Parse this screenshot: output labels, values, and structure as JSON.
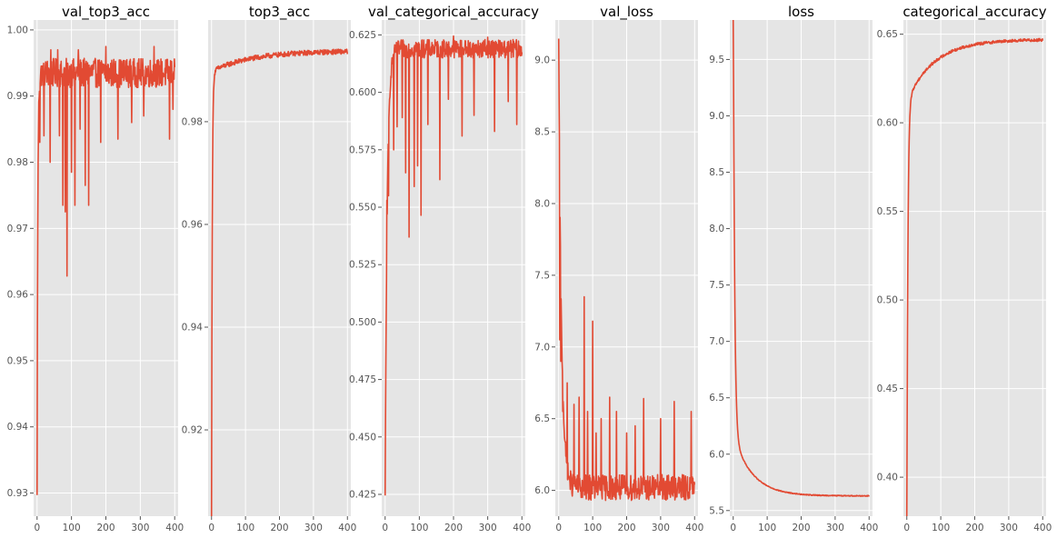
{
  "colors": {
    "panel_bg": "#e5e5e5",
    "grid": "#ffffff",
    "line": "#e24a33",
    "tick_text": "#555555"
  },
  "chart_data": [
    {
      "type": "line",
      "title": "val_top3_acc",
      "xlim": [
        -10,
        410
      ],
      "ylim": [
        0.9265,
        1.0015
      ],
      "xticks": [
        0,
        100,
        200,
        300,
        400
      ],
      "yticks": [
        0.93,
        0.94,
        0.95,
        0.96,
        0.97,
        0.98,
        0.99,
        1.0
      ],
      "ytick_labels": [
        "0.93",
        "0.94",
        "0.95",
        "0.96",
        "0.97",
        "0.98",
        "0.99",
        "1.00"
      ],
      "series": [
        {
          "start": 0.9297,
          "plateau": 0.9935,
          "tau": 2,
          "spread": 0.0022,
          "dips": [
            [
              8,
              0.983
            ],
            [
              20,
              0.984
            ],
            [
              38,
              0.98
            ],
            [
              65,
              0.984
            ],
            [
              75,
              0.9735
            ],
            [
              82,
              0.9725
            ],
            [
              87,
              0.9628
            ],
            [
              100,
              0.9785
            ],
            [
              110,
              0.9735
            ],
            [
              125,
              0.985
            ],
            [
              140,
              0.9765
            ],
            [
              150,
              0.9735
            ],
            [
              185,
              0.983
            ],
            [
              200,
              0.9808
            ],
            [
              235,
              0.9835
            ],
            [
              275,
              0.986
            ],
            [
              310,
              0.987
            ],
            [
              340,
              0.986
            ],
            [
              385,
              0.9835
            ],
            [
              395,
              0.988
            ]
          ],
          "peaks": [
            [
              40,
              0.997
            ],
            [
              60,
              0.997
            ],
            [
              120,
              0.997
            ],
            [
              200,
              0.9975
            ],
            [
              340,
              0.9975
            ]
          ]
        }
      ],
      "grid": true
    },
    {
      "type": "line",
      "title": "top3_acc",
      "xlim": [
        -10,
        410
      ],
      "ylim": [
        0.9032,
        0.9998
      ],
      "xticks": [
        0,
        100,
        200,
        300,
        400
      ],
      "yticks": [
        0.92,
        0.94,
        0.96,
        0.98
      ],
      "ytick_labels": [
        "0.92",
        "0.94",
        "0.96",
        "0.98"
      ],
      "series": [
        {
          "start": 0.9065,
          "plateau": 0.9938,
          "tau": 2,
          "spread": 0.0005,
          "slow_drop": 0.004,
          "slow_tau": 120,
          "dips": [],
          "peaks": []
        }
      ],
      "grid": true
    },
    {
      "type": "line",
      "title": "val_categorical_accuracy",
      "xlim": [
        -10,
        410
      ],
      "ylim": [
        0.4155,
        0.6315
      ],
      "xticks": [
        0,
        100,
        200,
        300,
        400
      ],
      "yticks": [
        0.425,
        0.45,
        0.475,
        0.5,
        0.525,
        0.55,
        0.575,
        0.6,
        0.625
      ],
      "ytick_labels": [
        "0.425",
        "0.450",
        "0.475",
        "0.500",
        "0.525",
        "0.550",
        "0.575",
        "0.600",
        "0.625"
      ],
      "series": [
        {
          "start": 0.4245,
          "plateau": 0.619,
          "tau": 6,
          "spread": 0.004,
          "dips": [
            [
              5,
              0.553
            ],
            [
              10,
              0.555
            ],
            [
              25,
              0.575
            ],
            [
              35,
              0.585
            ],
            [
              50,
              0.589
            ],
            [
              60,
              0.565
            ],
            [
              70,
              0.537
            ],
            [
              85,
              0.559
            ],
            [
              95,
              0.568
            ],
            [
              105,
              0.5465
            ],
            [
              125,
              0.586
            ],
            [
              160,
              0.562
            ],
            [
              185,
              0.597
            ],
            [
              225,
              0.581
            ],
            [
              260,
              0.59
            ],
            [
              320,
              0.583
            ],
            [
              360,
              0.596
            ],
            [
              385,
              0.586
            ]
          ],
          "peaks": [
            [
              200,
              0.6245
            ],
            [
              300,
              0.624
            ]
          ]
        }
      ],
      "grid": true
    },
    {
      "type": "line",
      "title": "val_loss",
      "xlim": [
        -10,
        410
      ],
      "ylim": [
        5.82,
        9.28
      ],
      "xticks": [
        0,
        100,
        200,
        300,
        400
      ],
      "yticks": [
        6.0,
        6.5,
        7.0,
        7.5,
        8.0,
        8.5,
        9.0
      ],
      "ytick_labels": [
        "6.0",
        "6.5",
        "7.0",
        "7.5",
        "8.0",
        "8.5",
        "9.0"
      ],
      "series": [
        {
          "start": 9.15,
          "plateau": 6.02,
          "tau": 8,
          "spread": 0.09,
          "dips": [],
          "peaks": [
            [
              3,
              7.05
            ],
            [
              6,
              6.9
            ],
            [
              12,
              6.55
            ],
            [
              25,
              6.75
            ],
            [
              45,
              6.6
            ],
            [
              60,
              6.65
            ],
            [
              75,
              7.35
            ],
            [
              85,
              6.55
            ],
            [
              100,
              7.18
            ],
            [
              110,
              6.4
            ],
            [
              125,
              6.5
            ],
            [
              150,
              6.65
            ],
            [
              170,
              6.55
            ],
            [
              200,
              6.4
            ],
            [
              225,
              6.45
            ],
            [
              250,
              6.64
            ],
            [
              300,
              6.5
            ],
            [
              340,
              6.62
            ],
            [
              390,
              6.55
            ]
          ]
        }
      ],
      "grid": true
    },
    {
      "type": "line",
      "title": "loss",
      "xlim": [
        -10,
        410
      ],
      "ylim": [
        5.45,
        9.85
      ],
      "xticks": [
        0,
        100,
        200,
        300,
        400
      ],
      "yticks": [
        5.5,
        6.0,
        6.5,
        7.0,
        7.5,
        8.0,
        8.5,
        9.0,
        9.5
      ],
      "ytick_labels": [
        "5.5",
        "6.0",
        "6.5",
        "7.0",
        "7.5",
        "8.0",
        "8.5",
        "9.0",
        "9.5"
      ],
      "series": [
        {
          "start": 9.7,
          "plateau": 5.63,
          "tau": 4,
          "spread": 0.004,
          "slow_drop": -0.55,
          "slow_tau": 55,
          "dips": [],
          "peaks": []
        }
      ],
      "grid": true
    },
    {
      "type": "line",
      "title": "categorical_accuracy",
      "xlim": [
        -10,
        410
      ],
      "ylim": [
        0.378,
        0.658
      ],
      "xticks": [
        0,
        100,
        200,
        300,
        400
      ],
      "yticks": [
        0.4,
        0.45,
        0.5,
        0.55,
        0.6,
        0.65
      ],
      "ytick_labels": [
        "0.40",
        "0.45",
        "0.50",
        "0.55",
        "0.60",
        "0.65"
      ],
      "series": [
        {
          "start": 0.391,
          "plateau": 0.647,
          "tau": 3,
          "spread": 0.0008,
          "slow_drop": 0.035,
          "slow_tau": 80,
          "dips": [],
          "peaks": []
        }
      ],
      "grid": true
    }
  ]
}
